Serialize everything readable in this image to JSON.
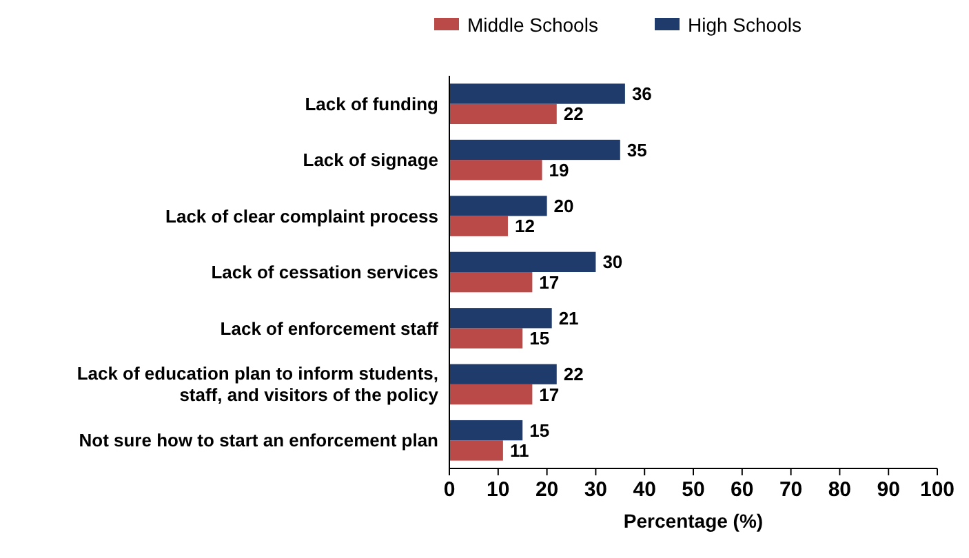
{
  "chart_data": {
    "type": "bar",
    "orientation": "horizontal",
    "xlabel": "Percentage (%)",
    "categories": [
      "Lack of funding",
      "Lack of signage",
      "Lack of clear complaint process",
      "Lack of cessation services",
      "Lack of enforcement staff",
      "Lack of education plan to inform students, staff, and visitors of the policy",
      "Not sure how to start an enforcement plan"
    ],
    "series": [
      {
        "name": "Middle Schools",
        "color": "#b94a48",
        "values": [
          22,
          19,
          12,
          17,
          15,
          17,
          11
        ]
      },
      {
        "name": "High Schools",
        "color": "#1f3b6b",
        "values": [
          36,
          35,
          20,
          30,
          21,
          22,
          15
        ]
      }
    ],
    "xlim": [
      0,
      100
    ],
    "xticks": [
      0,
      10,
      20,
      30,
      40,
      50,
      60,
      70,
      80,
      90,
      100
    ],
    "data_labels": true,
    "legend": "top",
    "grid": false
  }
}
